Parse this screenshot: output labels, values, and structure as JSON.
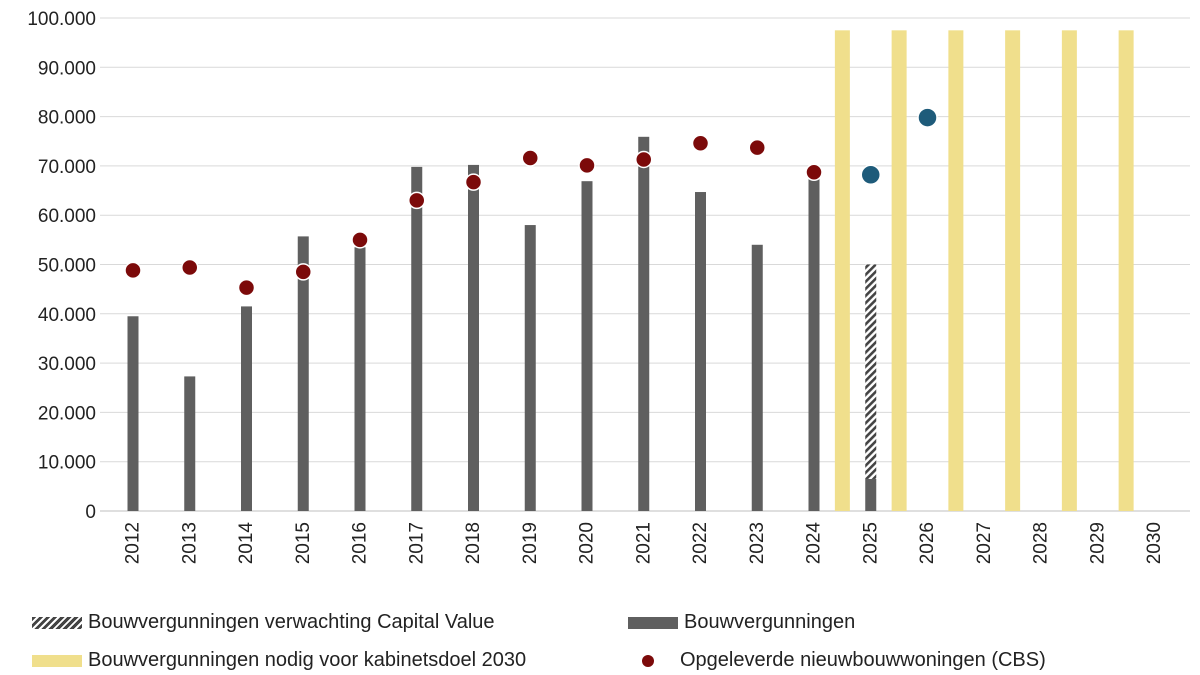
{
  "chart_data": {
    "type": "bar",
    "categories": [
      "2012",
      "2013",
      "2014",
      "2015",
      "2016",
      "2017",
      "2018",
      "2019",
      "2020",
      "2021",
      "2022",
      "2023",
      "2024",
      "2025",
      "2026",
      "2027",
      "2028",
      "2029",
      "2030"
    ],
    "ylim": [
      0,
      100000
    ],
    "yticks": [
      "0",
      "10.000",
      "20.000",
      "30.000",
      "40.000",
      "50.000",
      "60.000",
      "70.000",
      "80.000",
      "90.000",
      "100.000"
    ],
    "grid": true,
    "legend_position": "bottom",
    "series": [
      {
        "name": "Bouwvergunningen verwachting Capital Value",
        "kind": "bar-hatched",
        "color": "#444444",
        "values": [
          null,
          null,
          null,
          null,
          null,
          null,
          null,
          null,
          null,
          null,
          null,
          null,
          null,
          50000,
          null,
          null,
          null,
          null,
          null
        ]
      },
      {
        "name": "Bouwvergunningen",
        "kind": "bar",
        "color": "#5f5f5f",
        "values": [
          39500,
          27300,
          41500,
          55700,
          53500,
          69800,
          70200,
          58000,
          66900,
          75900,
          64700,
          54000,
          68500,
          6500,
          null,
          null,
          null,
          null,
          null
        ]
      },
      {
        "name": "Bouwvergunningen nodig voor kabinetsdoel 2030",
        "kind": "bar-between",
        "color": "#f0df8c",
        "values": [
          97500,
          97500,
          97500,
          97500,
          97500,
          97500
        ],
        "positions": [
          "2024|2025",
          "2025|2026",
          "2026|2027",
          "2027|2028",
          "2028|2029",
          "2029|2030"
        ]
      },
      {
        "name": "Opgeleverde nieuwbouwwoningen (CBS)",
        "kind": "dot",
        "color": "#7c0a0a",
        "forecast_color": "#1e5b7a",
        "values": [
          48800,
          49400,
          45300,
          48500,
          55000,
          63000,
          66700,
          71600,
          70100,
          71300,
          74600,
          73700,
          68700,
          68200,
          79800,
          null,
          null,
          null,
          null
        ],
        "forecast_from": "2025"
      }
    ]
  },
  "legend": {
    "hatched": "Bouwvergunningen verwachting Capital Value",
    "bar": "Bouwvergunningen",
    "yellow": "Bouwvergunningen nodig voor kabinetsdoel 2030",
    "dot": "Opgeleverde nieuwbouwwoningen (CBS)"
  }
}
